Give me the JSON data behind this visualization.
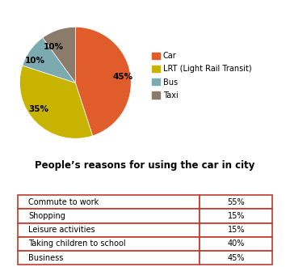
{
  "pie_values": [
    45,
    35,
    10,
    10
  ],
  "pie_labels": [
    "45%",
    "35%",
    "10%",
    "10%"
  ],
  "pie_colors": [
    "#E05C2A",
    "#C8B400",
    "#7BAAB0",
    "#8B7B6B"
  ],
  "legend_labels": [
    "Car",
    "LRT (Light Rail Transit)",
    "Bus",
    "Taxi"
  ],
  "table_title": "People’s reasons for using the car in city",
  "table_rows": [
    [
      "Commute to work",
      "55%"
    ],
    [
      "Shopping",
      "15%"
    ],
    [
      "Leisure activities",
      "15%"
    ],
    [
      "Taking children to school",
      "40%"
    ],
    [
      "Business",
      "45%"
    ]
  ],
  "table_border_color": "#C0392B",
  "background_color": "#FFFFFF",
  "title_fontsize": 8.5,
  "pie_label_fontsize": 7.5,
  "legend_fontsize": 7.0,
  "table_fontsize": 7.0
}
